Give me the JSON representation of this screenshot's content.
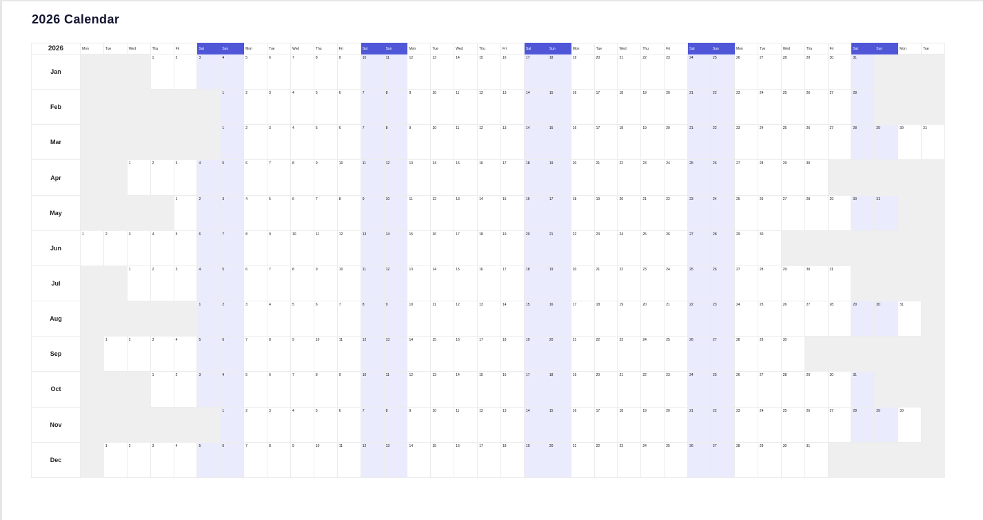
{
  "page": {
    "title": "2026 Calendar"
  },
  "calendar": {
    "year_label": "2026",
    "weekday_headers": [
      "Mon",
      "Tue",
      "Wed",
      "Thu",
      "Fri",
      "Sat",
      "Sun",
      "Mon",
      "Tue",
      "Wed",
      "Thu",
      "Fri",
      "Sat",
      "Sun",
      "Mon",
      "Tue",
      "Wed",
      "Thu",
      "Fri",
      "Sat",
      "Sun",
      "Mon",
      "Tue",
      "Wed",
      "Thu",
      "Fri",
      "Sat",
      "Sun",
      "Mon",
      "Tue",
      "Wed",
      "Thu",
      "Fri",
      "Sat",
      "Sun",
      "Mon",
      "Tue"
    ],
    "months": [
      {
        "label": "Jan",
        "start_offset": 3,
        "days": 31
      },
      {
        "label": "Feb",
        "start_offset": 6,
        "days": 28
      },
      {
        "label": "Mar",
        "start_offset": 6,
        "days": 31
      },
      {
        "label": "Apr",
        "start_offset": 2,
        "days": 30
      },
      {
        "label": "May",
        "start_offset": 4,
        "days": 31
      },
      {
        "label": "Jun",
        "start_offset": 0,
        "days": 30
      },
      {
        "label": "Jul",
        "start_offset": 2,
        "days": 31
      },
      {
        "label": "Aug",
        "start_offset": 5,
        "days": 31
      },
      {
        "label": "Sep",
        "start_offset": 1,
        "days": 30
      },
      {
        "label": "Oct",
        "start_offset": 3,
        "days": 31
      },
      {
        "label": "Nov",
        "start_offset": 6,
        "days": 30
      },
      {
        "label": "Dec",
        "start_offset": 1,
        "days": 31
      }
    ]
  },
  "colors": {
    "weekend_header": "#4f57d8",
    "weekend_cell": "#eaebfc",
    "empty_cell": "#efefef",
    "title_text": "#121530"
  }
}
